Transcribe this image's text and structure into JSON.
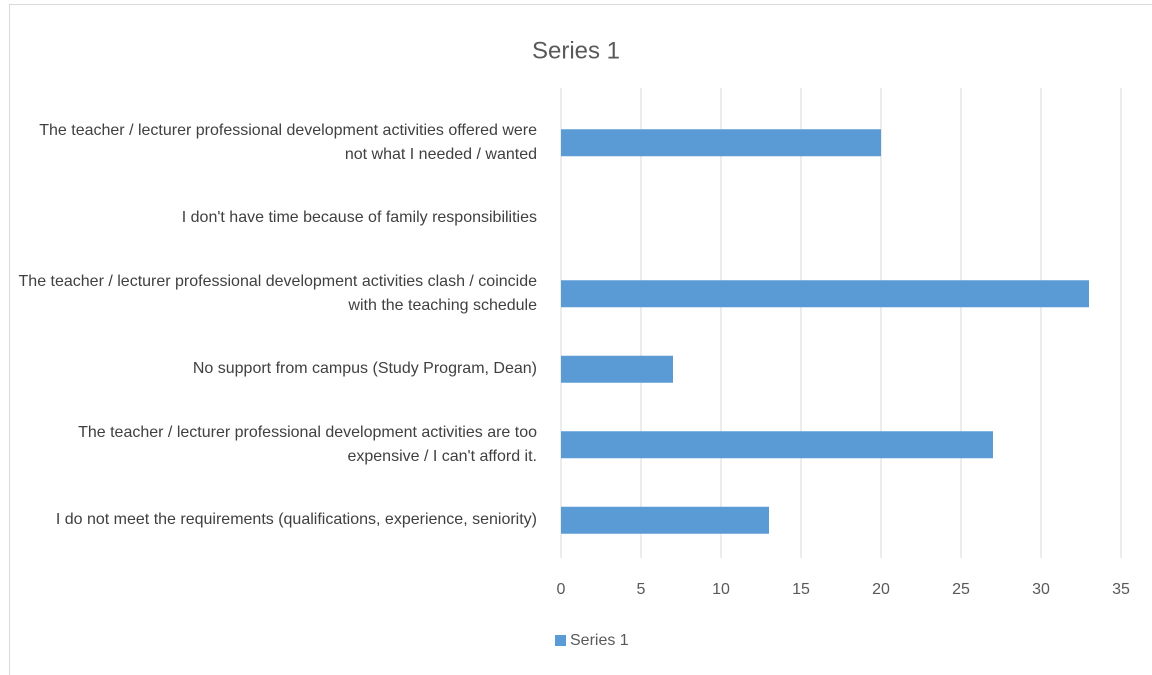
{
  "chart_data": {
    "type": "hbar",
    "title": "Series 1",
    "categories": [
      "The teacher / lecturer professional development activities offered were not what I needed / wanted",
      "I don't have time because of family responsibilities",
      "The teacher / lecturer professional development activities clash / coincide with the teaching schedule",
      "No support from campus (Study Program, Dean)",
      "The teacher / lecturer professional development activities are too expensive / I can't afford it.",
      "I do not meet the requirements (qualifications, experience, seniority)"
    ],
    "series": [
      {
        "name": "Series 1",
        "color": "#5b9bd5",
        "values": [
          20,
          0,
          33,
          7,
          27,
          13
        ]
      }
    ],
    "xlim": [
      0,
      35
    ],
    "xticks": [
      0,
      5,
      10,
      15,
      20,
      25,
      30,
      35
    ],
    "grid": true,
    "legend": "bottom"
  }
}
